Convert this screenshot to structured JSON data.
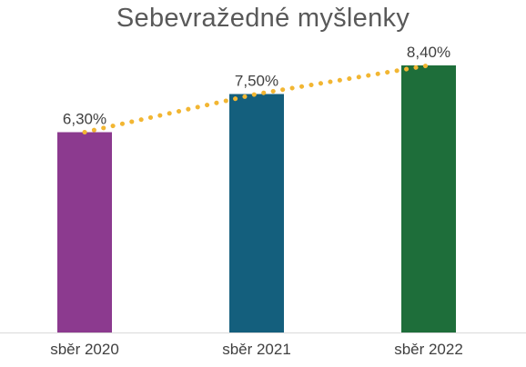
{
  "chart_data": {
    "type": "bar",
    "title": "Sebevražedné myšlenky",
    "categories": [
      "sběr 2020",
      "sběr 2021",
      "sběr 2022"
    ],
    "values": [
      6.3,
      7.5,
      8.4
    ],
    "value_labels": [
      "6,30%",
      "7,50%",
      "8,40%"
    ],
    "colors": [
      "#8c3a8f",
      "#145f7d",
      "#1e6e3a"
    ],
    "trendline": {
      "style": "dotted",
      "color": "#f2b632"
    },
    "ylim": [
      0,
      9.2
    ],
    "grid": false,
    "legend": "none"
  }
}
